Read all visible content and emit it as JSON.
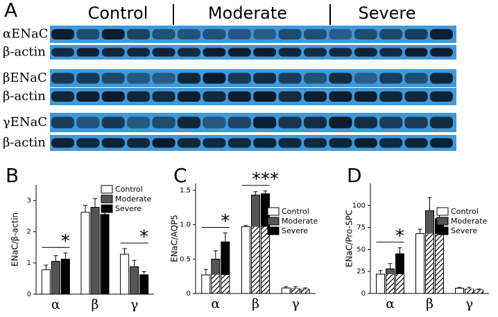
{
  "blot": {
    "label": "A",
    "groups": [
      "Control",
      "Moderate",
      "Severe"
    ],
    "rows": [
      "αENaC",
      "β-actin",
      "βENaC",
      "β-actin",
      "γENaC",
      "β-actin"
    ]
  },
  "chart_data": [
    {
      "type": "bar",
      "label": "B",
      "y_label": "ENaC/β-actin",
      "categories": [
        "α",
        "β",
        "γ"
      ],
      "series": [
        {
          "name": "Control",
          "color": "#ffffff",
          "values": [
            0.78,
            2.62,
            1.28
          ],
          "errors": [
            0.15,
            0.22,
            0.18
          ]
        },
        {
          "name": "Moderate",
          "color": "#555555",
          "values": [
            1.05,
            2.78,
            0.88
          ],
          "errors": [
            0.18,
            0.28,
            0.2
          ]
        },
        {
          "name": "Severe",
          "color": "#000000",
          "values": [
            1.12,
            2.55,
            0.62
          ],
          "errors": [
            0.2,
            0.1,
            0.1
          ]
        }
      ],
      "ylim": [
        0,
        3.5
      ],
      "yticks": [
        0,
        1,
        2,
        3
      ],
      "hatch": false,
      "annotations": [
        "*",
        "*"
      ]
    },
    {
      "type": "bar",
      "label": "C",
      "y_label": "ENaC/AQP5",
      "categories": [
        "α",
        "β",
        "γ"
      ],
      "series": [
        {
          "name": "Control",
          "color": "#ffffff",
          "values": [
            0.27,
            0.97,
            0.08
          ],
          "errors": [
            0.08,
            0.02,
            0.02
          ]
        },
        {
          "name": "Moderate",
          "color": "#555555",
          "values": [
            0.5,
            1.43,
            0.07
          ],
          "errors": [
            0.12,
            0.05,
            0.03
          ]
        },
        {
          "name": "Severe",
          "color": "#000000",
          "values": [
            0.75,
            1.45,
            0.06
          ],
          "errors": [
            0.13,
            0.04,
            0.02
          ]
        }
      ],
      "ylim": [
        0,
        1.6
      ],
      "yticks": [
        0,
        0.5,
        {
          "value": 1,
          "label": "1.0"
        },
        {
          "value": 1.5,
          "label": "1.5"
        }
      ],
      "hatch": true,
      "annotations": [
        "*",
        "***"
      ]
    },
    {
      "type": "bar",
      "label": "D",
      "y_label": "ENaC/Pro-SPC",
      "categories": [
        "α",
        "β",
        "γ"
      ],
      "series": [
        {
          "name": "Control",
          "color": "#ffffff",
          "values": [
            22,
            68,
            6
          ],
          "errors": [
            4,
            5,
            1
          ]
        },
        {
          "name": "Moderate",
          "color": "#555555",
          "values": [
            28,
            94,
            5
          ],
          "errors": [
            6,
            15,
            2
          ]
        },
        {
          "name": "Severe",
          "color": "#000000",
          "values": [
            45,
            85,
            4
          ],
          "errors": [
            7,
            6,
            1
          ]
        }
      ],
      "ylim": [
        0,
        125
      ],
      "yticks": [
        0,
        25,
        50,
        75,
        100
      ],
      "hatch": true,
      "annotations": [
        "*"
      ]
    }
  ]
}
